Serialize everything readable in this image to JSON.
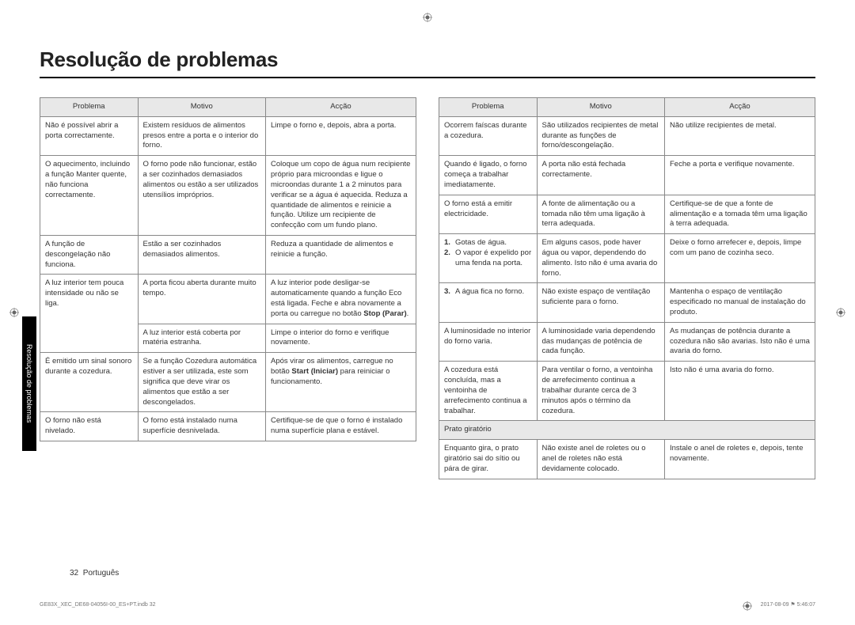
{
  "title": "Resolução de problemas",
  "sideTab": "Resolução de problemas",
  "headers": {
    "c1": "Problema",
    "c2": "Motivo",
    "c3": "Acção"
  },
  "left": [
    {
      "p": "Não é possível abrir a porta correctamente.",
      "m": "Existem resíduos de alimentos presos entre a porta e o interior do forno.",
      "a": "Limpe o forno e, depois, abra a porta."
    },
    {
      "p": "O aquecimento, incluindo a função Manter quente, não funciona correctamente.",
      "m": "O forno pode não funcionar, estão a ser cozinhados demasiados alimentos ou estão a ser utilizados utensílios impróprios.",
      "a": "Coloque um copo de água num recipiente próprio para microondas e ligue o microondas durante 1 a 2 minutos para verificar se a água é aquecida. Reduza a quantidade de alimentos e reinicie a função. Utilize um recipiente de confecção com um fundo plano."
    },
    {
      "p": "A função de descongelação não funciona.",
      "m": "Estão a ser cozinhados demasiados alimentos.",
      "a": "Reduza a quantidade de alimentos e reinicie a função."
    },
    {
      "p": "A luz interior tem pouca intensidade ou não se liga.",
      "m": "A porta ficou aberta durante muito tempo.",
      "a_html": "A luz interior pode desligar-se automaticamente quando a função Eco está ligada. Feche e abra novamente a porta ou carregue no botão <b>Stop (Parar)</b>."
    },
    {
      "p": "",
      "m": "A luz interior está coberta por matéria estranha.",
      "a": "Limpe o interior do forno e verifique novamente."
    },
    {
      "p": "É emitido um sinal sonoro durante a cozedura.",
      "m": "Se a função Cozedura automática estiver a ser utilizada, este som significa que deve virar os alimentos que estão a ser descongelados.",
      "a_html": "Após virar os alimentos, carregue no botão <b>Start (Iniciar)</b> para reiniciar o funcionamento."
    },
    {
      "p": "O forno não está nivelado.",
      "m": "O forno está instalado numa superfície desnivelada.",
      "a": "Certifique-se de que o forno é instalado numa superfície plana e estável."
    }
  ],
  "right": [
    {
      "p": "Ocorrem faíscas durante a cozedura.",
      "m": "São utilizados recipientes de metal durante as funções de forno/descongelação.",
      "a": "Não utilize recipientes de metal."
    },
    {
      "p": "Quando é ligado, o forno começa a trabalhar imediatamente.",
      "m": "A porta não está fechada correctamente.",
      "a": "Feche a porta e verifique novamente."
    },
    {
      "p": "O forno está a emitir electricidade.",
      "m": "A fonte de alimentação ou a tomada não têm uma ligação à terra adequada.",
      "a": "Certifique-se de que a fonte de alimentação e a tomada têm uma ligação à terra adequada."
    },
    {
      "p_list": [
        {
          "n": "1.",
          "t": "Gotas de água."
        },
        {
          "n": "2.",
          "t": "O vapor é expelido por uma fenda na porta."
        }
      ],
      "m": "Em alguns casos, pode haver água ou vapor, dependendo do alimento. Isto não é uma avaria do forno.",
      "a": "Deixe o forno arrefecer e, depois, limpe com um pano de cozinha seco."
    },
    {
      "p_list": [
        {
          "n": "3.",
          "t": "A água fica no forno."
        }
      ],
      "m": "Não existe espaço de ventilação suficiente para o forno.",
      "a": "Mantenha o espaço de ventilação especificado no manual de instalação do produto."
    },
    {
      "p": "A luminosidade no interior do forno varia.",
      "m": "A luminosidade varia dependendo das mudanças de potência de cada função.",
      "a": "As mudanças de potência durante a cozedura não são avarias. Isto não é uma avaria do forno."
    },
    {
      "p": "A cozedura está concluída, mas a ventoinha de arrefecimento continua a trabalhar.",
      "m": "Para ventilar o forno, a ventoinha de arrefecimento continua a trabalhar durante cerca de 3 minutos após o término da cozedura.",
      "a": "Isto não é uma avaria do forno."
    },
    {
      "sub": "Prato giratório"
    },
    {
      "p": "Enquanto gira, o prato giratório sai do sítio ou pára de girar.",
      "m": "Não existe anel de roletes ou o anel de roletes não está devidamente colocado.",
      "a": "Instale o anel de roletes e, depois, tente novamente."
    }
  ],
  "rowspans_left": [
    1,
    1,
    1,
    2,
    0,
    1,
    1
  ],
  "rowspans_right": [
    1,
    1,
    1,
    2,
    0,
    1,
    1,
    null,
    1
  ],
  "footer": {
    "page": "32",
    "lang": "Português"
  },
  "footnote": {
    "left": "GE83X_XEC_DE68-04056I-00_ES+PT.indb   32",
    "right": "2017-08-09   ⚑ 5:46:07"
  }
}
